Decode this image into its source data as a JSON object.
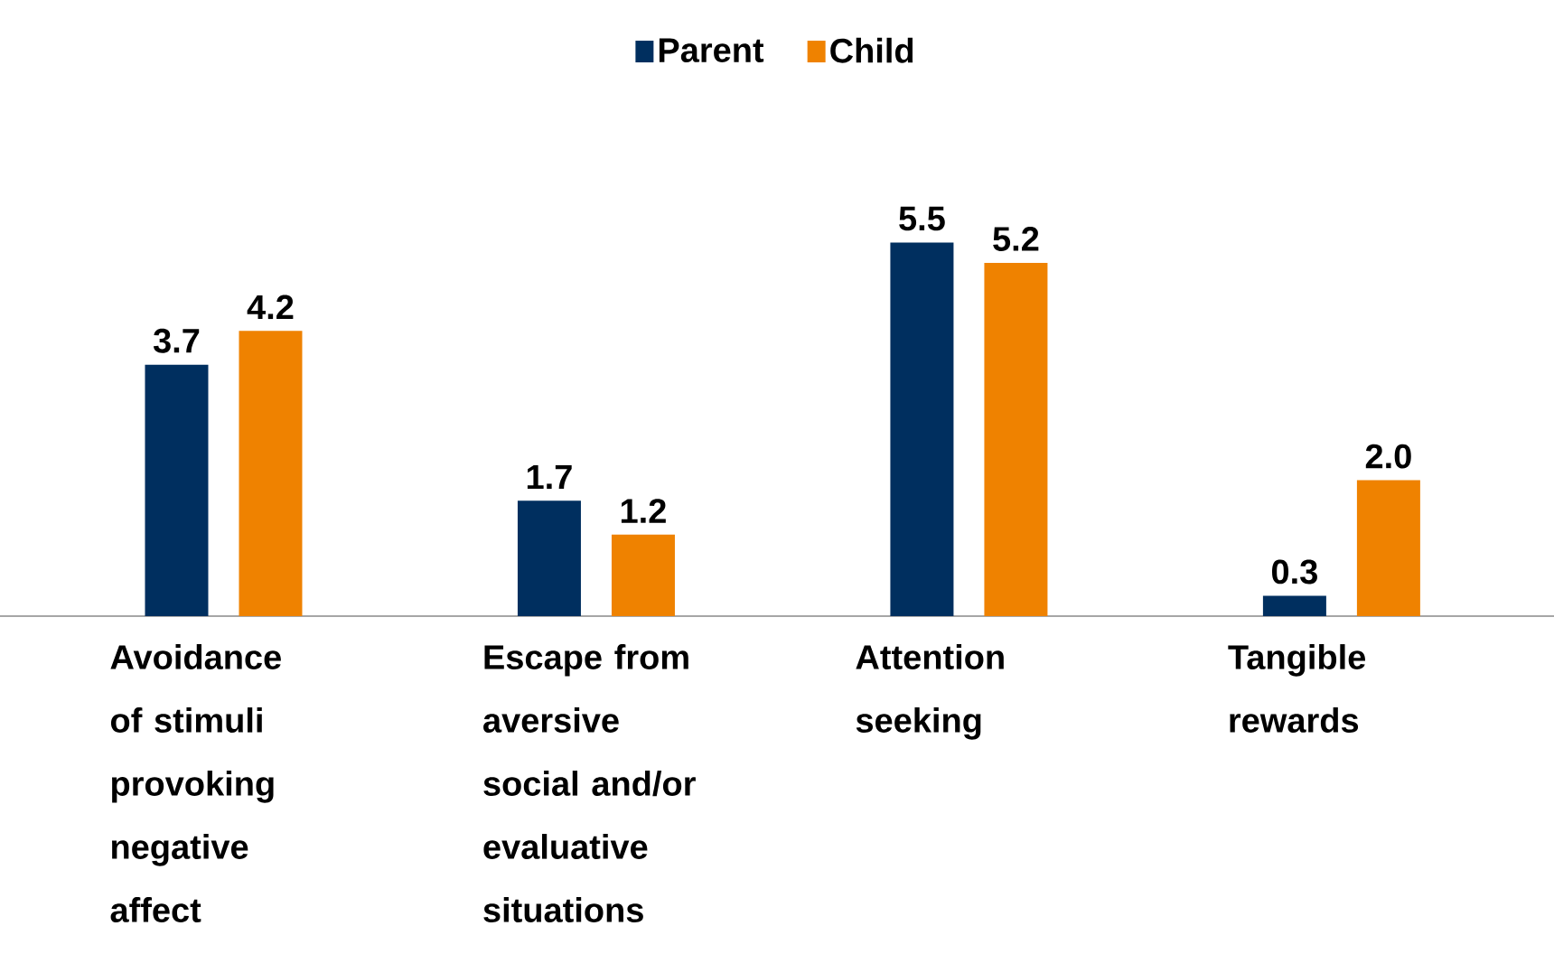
{
  "chart_data": {
    "type": "bar",
    "categories": [
      "Avoidance of stimuli provoking negative affect",
      "Escape from aversive social and/or evaluative situations",
      "Attention seeking",
      "Tangible rewards"
    ],
    "series": [
      {
        "name": "Parent",
        "color": "#002f5f",
        "values": [
          3.7,
          1.7,
          5.5,
          0.3
        ],
        "value_labels": [
          "3.7",
          "1.7",
          "5.5",
          "0.3"
        ]
      },
      {
        "name": "Child",
        "color": "#ef8200",
        "values": [
          4.2,
          1.2,
          5.2,
          2.0
        ],
        "value_labels": [
          "4.2",
          "1.2",
          "5.2",
          "2.0"
        ]
      }
    ],
    "legend": "top"
  }
}
